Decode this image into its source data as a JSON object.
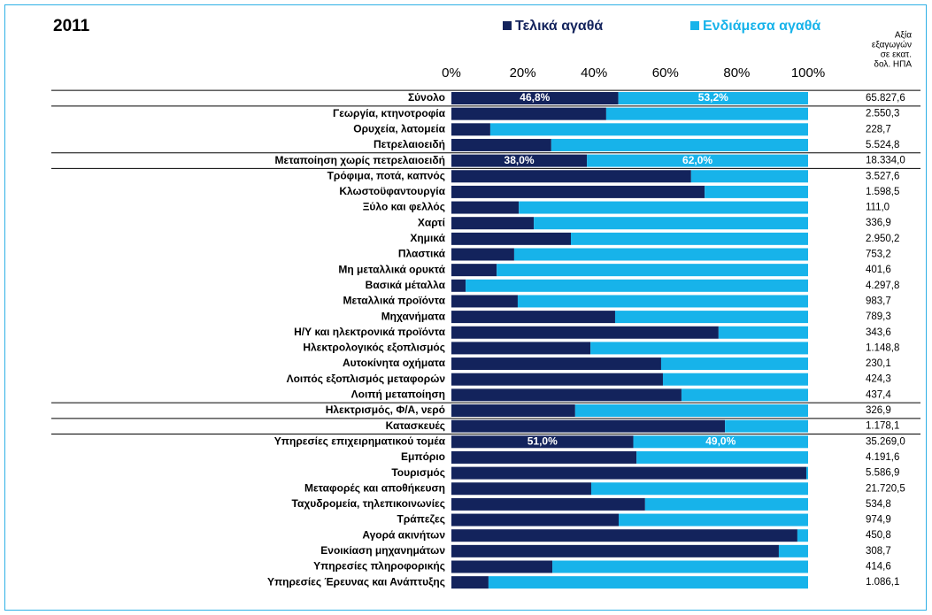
{
  "chart_data": {
    "type": "bar",
    "orientation": "horizontal",
    "stacked": true,
    "title": "2011",
    "column_header": [
      "Αξία",
      "εξαγωγών",
      "σε εκατ.",
      "δολ. ΗΠΑ"
    ],
    "categories": [
      "Σύνολο",
      "Γεωργία, κτηνοτροφία",
      "Ορυχεία, λατομεία",
      "Πετρελαιοειδή",
      "Μεταποίηση χωρίς πετρελαιοειδή",
      "Τρόφιμα, ποτά, καπνός",
      "Κλωστοϋφαντουργία",
      "Ξύλο και φελλός",
      "Χαρτί",
      "Χημικά",
      "Πλαστικά",
      "Μη μεταλλικά ορυκτά",
      "Βασικά μέταλλα",
      "Μεταλλικά προϊόντα",
      "Μηχανήματα",
      "Η/Υ και ηλεκτρονικά προϊόντα",
      "Ηλεκτρολογικός εξοπλισμός",
      "Αυτοκίνητα οχήματα",
      "Λοιπός εξοπλισμός μεταφορών",
      "Λοιπή μεταποίηση",
      "Ηλεκτρισμός, Φ/Α, νερό",
      "Κατασκευές",
      "Υπηρεσίες επιχειρηματικού τομέα",
      "Εμπόριο",
      "Τουρισμός",
      "Μεταφορές και αποθήκευση",
      "Ταχυδρομεία, τηλεπικοινωνίες",
      "Τράπεζες",
      "Αγορά ακινήτων",
      "Ενοικίαση μηχανημάτων",
      "Υπηρεσίες πληροφορικής",
      "Υπηρεσίες Έρευνας και Ανάπτυξης"
    ],
    "exports": [
      "65.827,6",
      "2.550,3",
      "228,7",
      "5.524,8",
      "18.334,0",
      "3.527,6",
      "1.598,5",
      "111,0",
      "336,9",
      "2.950,2",
      "753,2",
      "401,6",
      "4.297,8",
      "983,7",
      "789,3",
      "343,6",
      "1.148,8",
      "230,1",
      "424,3",
      "437,4",
      "326,9",
      "1.178,1",
      "35.269,0",
      "4.191,6",
      "5.586,9",
      "21.720,5",
      "534,8",
      "974,9",
      "450,8",
      "308,7",
      "414,6",
      "1.086,1"
    ],
    "series": [
      {
        "name": "Τελικά αγαθά",
        "color": "#13235c",
        "values": [
          46.8,
          43.4,
          10.9,
          28.0,
          38.0,
          67.2,
          71.0,
          18.9,
          23.1,
          33.5,
          17.6,
          12.7,
          4.0,
          18.6,
          45.9,
          74.9,
          39.0,
          58.8,
          59.3,
          64.5,
          34.7,
          76.7,
          51.0,
          51.9,
          99.5,
          39.2,
          54.3,
          46.9,
          97.0,
          91.8,
          28.3,
          10.4
        ],
        "value_labels": [
          "46,8%",
          null,
          null,
          null,
          "38,0%",
          null,
          null,
          null,
          null,
          null,
          null,
          null,
          null,
          null,
          null,
          null,
          null,
          null,
          null,
          null,
          null,
          null,
          "51,0%",
          null,
          null,
          null,
          null,
          null,
          null,
          null,
          null,
          null
        ]
      },
      {
        "name": "Ενδιάμεσα αγαθά",
        "color": "#17b3ea",
        "values": [
          53.2,
          56.6,
          89.1,
          72.0,
          62.0,
          32.8,
          29.0,
          81.1,
          76.9,
          66.5,
          82.4,
          87.3,
          96.0,
          81.4,
          54.1,
          25.1,
          61.0,
          41.2,
          40.7,
          35.5,
          65.3,
          23.3,
          49.0,
          48.1,
          0.5,
          60.8,
          45.7,
          53.1,
          3.0,
          8.2,
          71.7,
          89.6
        ],
        "value_labels": [
          "53,2%",
          null,
          null,
          null,
          "62,0%",
          null,
          null,
          null,
          null,
          null,
          null,
          null,
          null,
          null,
          null,
          null,
          null,
          null,
          null,
          null,
          null,
          null,
          "49,0%",
          null,
          null,
          null,
          null,
          null,
          null,
          null,
          null,
          null
        ]
      }
    ],
    "xlim": [
      0,
      100
    ],
    "xticks": [
      {
        "value": 0,
        "label": "0%"
      },
      {
        "value": 20,
        "label": "20%"
      },
      {
        "value": 40,
        "label": "40%"
      },
      {
        "value": 60,
        "label": "60%"
      },
      {
        "value": 80,
        "label": "80%"
      },
      {
        "value": 100,
        "label": "100%"
      }
    ]
  }
}
